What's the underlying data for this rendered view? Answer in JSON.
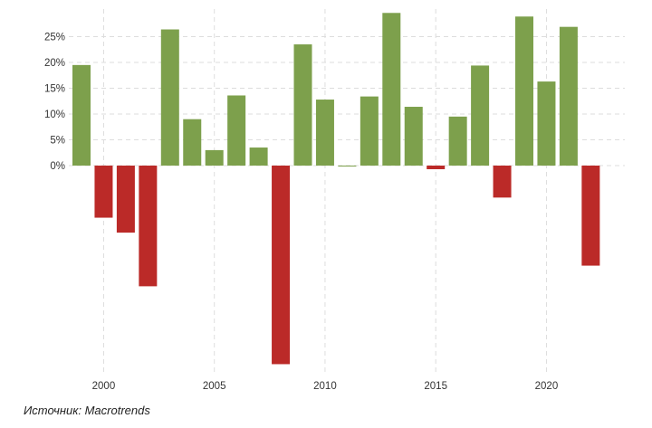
{
  "chart_data": {
    "type": "bar",
    "title": "",
    "xlabel": "",
    "ylabel": "",
    "x": [
      1999,
      2000,
      2001,
      2002,
      2003,
      2004,
      2005,
      2006,
      2007,
      2008,
      2009,
      2010,
      2011,
      2012,
      2013,
      2014,
      2015,
      2016,
      2017,
      2018,
      2019,
      2020,
      2021,
      2022
    ],
    "values": [
      19.5,
      -10.1,
      -13.0,
      -23.4,
      26.4,
      9.0,
      3.0,
      13.6,
      3.5,
      -38.5,
      23.5,
      12.8,
      0.0,
      13.4,
      29.6,
      11.4,
      -0.7,
      9.5,
      19.4,
      -6.2,
      28.9,
      16.3,
      26.9,
      -19.4
    ],
    "ylim": [
      -40,
      30
    ],
    "y_ticks": [
      0,
      5,
      10,
      15,
      20,
      25
    ],
    "y_tick_labels": [
      "0%",
      "5%",
      "10%",
      "15%",
      "20%",
      "25%"
    ],
    "x_ticks": [
      2000,
      2005,
      2010,
      2015,
      2020
    ],
    "x_tick_labels": [
      "2000",
      "2005",
      "2010",
      "2015",
      "2020"
    ],
    "grid": true,
    "legend": "none",
    "colors": {
      "positive": "#7da04c",
      "negative": "#bb2a28",
      "grid": "#dddddd"
    }
  },
  "source_text": "Источник: Macrotrends"
}
